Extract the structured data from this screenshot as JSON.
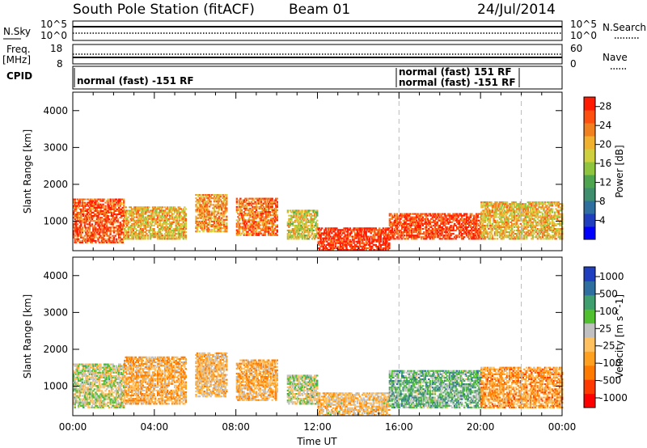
{
  "header": {
    "station": "South Pole Station (fitACF)",
    "beam": "Beam 01",
    "date": "24/Jul/2014"
  },
  "status_panels": {
    "nsky_label": "N.Sky",
    "nsky_ticks": [
      "10^5",
      "10^0"
    ],
    "nsearch_label": "N.Search",
    "nsearch_ticks": [
      "10^5",
      "10^0"
    ],
    "freq_label": "Freq.",
    "freq_unit": "[MHz]",
    "freq_ticks": [
      "18",
      "8"
    ],
    "nave_label": "Nave",
    "nave_ticks": [
      "60",
      "0"
    ],
    "cpid_label": "CPID",
    "cpid_entries": [
      {
        "text": "normal (fast) -151 RF",
        "start_hour": 0
      },
      {
        "text": "normal (fast) 151 RF",
        "start_hour": 16
      },
      {
        "text": "normal (fast) -151 RF",
        "start_hour": 16
      }
    ]
  },
  "chart_data": [
    {
      "type": "heatmap",
      "title": "",
      "xlabel": "",
      "ylabel": "Slant Range [km]",
      "xlim": [
        0,
        24
      ],
      "ylim": [
        200,
        4500
      ],
      "yticks": [
        1000,
        2000,
        3000,
        4000
      ],
      "colorbar": {
        "label": "Power [dB]",
        "ticks": [
          "4",
          "8",
          "12",
          "16",
          "20",
          "24",
          "28"
        ],
        "min": 0,
        "max": 30,
        "colors": [
          "#0000ff",
          "#1f3fbf",
          "#2f6f9f",
          "#3f8f6f",
          "#4fa54f",
          "#8fc43f",
          "#cfd03f",
          "#f0b030",
          "#f08020",
          "#ff5010",
          "#ff1a00"
        ]
      },
      "vlines_hours": [
        16,
        22
      ],
      "echo_regions": [
        {
          "t0": 0.0,
          "t1": 2.5,
          "r0": 400,
          "r1": 1600,
          "power": 26
        },
        {
          "t0": 2.5,
          "t1": 5.5,
          "r0": 500,
          "r1": 1400,
          "power": 20
        },
        {
          "t0": 6.0,
          "t1": 7.5,
          "r0": 700,
          "r1": 1700,
          "power": 22
        },
        {
          "t0": 8.0,
          "t1": 10.0,
          "r0": 600,
          "r1": 1600,
          "power": 24
        },
        {
          "t0": 10.5,
          "t1": 12.0,
          "r0": 500,
          "r1": 1300,
          "power": 18
        },
        {
          "t0": 12.0,
          "t1": 15.5,
          "r0": 200,
          "r1": 800,
          "power": 28
        },
        {
          "t0": 15.5,
          "t1": 20.0,
          "r0": 500,
          "r1": 1200,
          "power": 27
        },
        {
          "t0": 20.0,
          "t1": 24.0,
          "r0": 500,
          "r1": 1500,
          "power": 20
        }
      ]
    },
    {
      "type": "heatmap",
      "title": "",
      "xlabel": "Time UT",
      "ylabel": "Slant Range [km]",
      "xlim": [
        0,
        24
      ],
      "ylim": [
        200,
        4500
      ],
      "yticks": [
        1000,
        2000,
        3000,
        4000
      ],
      "xticks": [
        "00:00",
        "04:00",
        "08:00",
        "12:00",
        "16:00",
        "20:00",
        "00:00"
      ],
      "colorbar": {
        "label": "Velocity [m s^-1]",
        "ticks": [
          "1000",
          "500",
          "100",
          "25",
          "-25",
          "-100",
          "-500",
          "-1000"
        ],
        "min": -1200,
        "max": 1200,
        "colors": [
          "#ff0000",
          "#ff3a00",
          "#ff7a00",
          "#ffa020",
          "#ffc060",
          "#c0c0c0",
          "#50c030",
          "#3f9f6f",
          "#2f6f9f",
          "#1f3fbf"
        ]
      },
      "vlines_hours": [
        16,
        22
      ],
      "echo_regions": [
        {
          "t0": 0.0,
          "t1": 2.5,
          "r0": 400,
          "r1": 1600,
          "velocity": 100
        },
        {
          "t0": 2.5,
          "t1": 5.5,
          "r0": 500,
          "r1": 1800,
          "velocity": -300
        },
        {
          "t0": 6.0,
          "t1": 7.5,
          "r0": 700,
          "r1": 1900,
          "velocity": -200
        },
        {
          "t0": 8.0,
          "t1": 10.0,
          "r0": 600,
          "r1": 1700,
          "velocity": -300
        },
        {
          "t0": 10.5,
          "t1": 12.0,
          "r0": 500,
          "r1": 1300,
          "velocity": 150
        },
        {
          "t0": 12.0,
          "t1": 15.5,
          "r0": 200,
          "r1": 800,
          "velocity": -150
        },
        {
          "t0": 15.5,
          "t1": 20.0,
          "r0": 400,
          "r1": 1400,
          "velocity": 400
        },
        {
          "t0": 20.0,
          "t1": 24.0,
          "r0": 400,
          "r1": 1500,
          "velocity": -400
        }
      ]
    }
  ]
}
